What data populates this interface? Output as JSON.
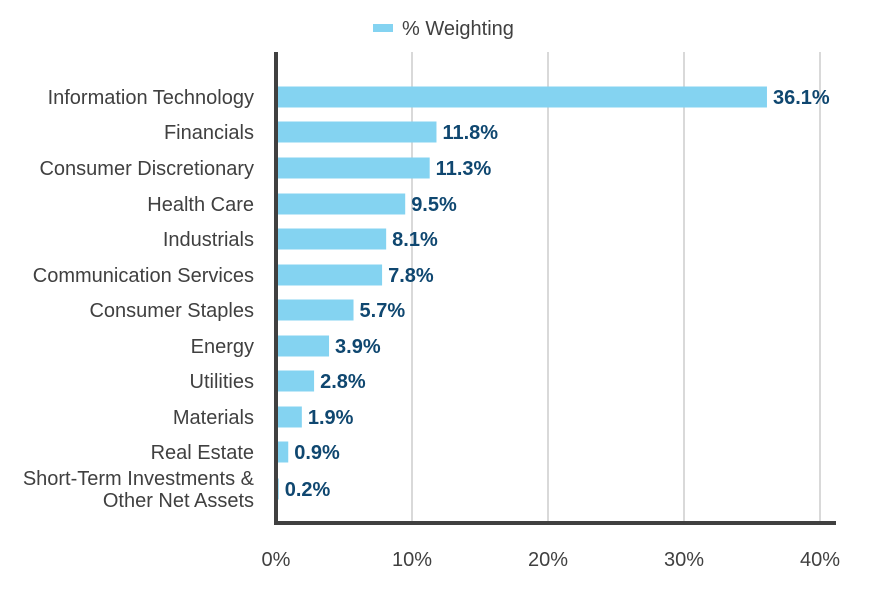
{
  "chart_data": {
    "type": "bar",
    "orientation": "horizontal",
    "title": "",
    "xlabel": "",
    "ylabel": "",
    "xlim": [
      0,
      40
    ],
    "grid": true,
    "legend_position": "top",
    "bar_color": "#84d3f1",
    "label_color": "#0f4770",
    "x_ticks": [
      "0%",
      "10%",
      "20%",
      "30%",
      "40%"
    ],
    "x_tick_values": [
      0,
      10,
      20,
      30,
      40
    ],
    "categories": [
      "Information Technology",
      "Financials",
      "Consumer Discretionary",
      "Health Care",
      "Industrials",
      "Communication Services",
      "Consumer Staples",
      "Energy",
      "Utilities",
      "Materials",
      "Real Estate",
      "Short-Term Investments & Other Net Assets"
    ],
    "category_lines": [
      [
        "Information Technology"
      ],
      [
        "Financials"
      ],
      [
        "Consumer Discretionary"
      ],
      [
        "Health Care"
      ],
      [
        "Industrials"
      ],
      [
        "Communication Services"
      ],
      [
        "Consumer Staples"
      ],
      [
        "Energy"
      ],
      [
        "Utilities"
      ],
      [
        "Materials"
      ],
      [
        "Real Estate"
      ],
      [
        "Short-Term Investments &",
        "Other Net Assets"
      ]
    ],
    "series": [
      {
        "name": "% Weighting",
        "values": [
          36.1,
          11.8,
          11.3,
          9.5,
          8.1,
          7.8,
          5.7,
          3.9,
          2.8,
          1.9,
          0.9,
          0.2
        ],
        "labels": [
          "36.1%",
          "11.8%",
          "11.3%",
          "9.5%",
          "8.1%",
          "7.8%",
          "5.7%",
          "3.9%",
          "2.8%",
          "1.9%",
          "0.9%",
          "0.2%"
        ]
      }
    ]
  }
}
